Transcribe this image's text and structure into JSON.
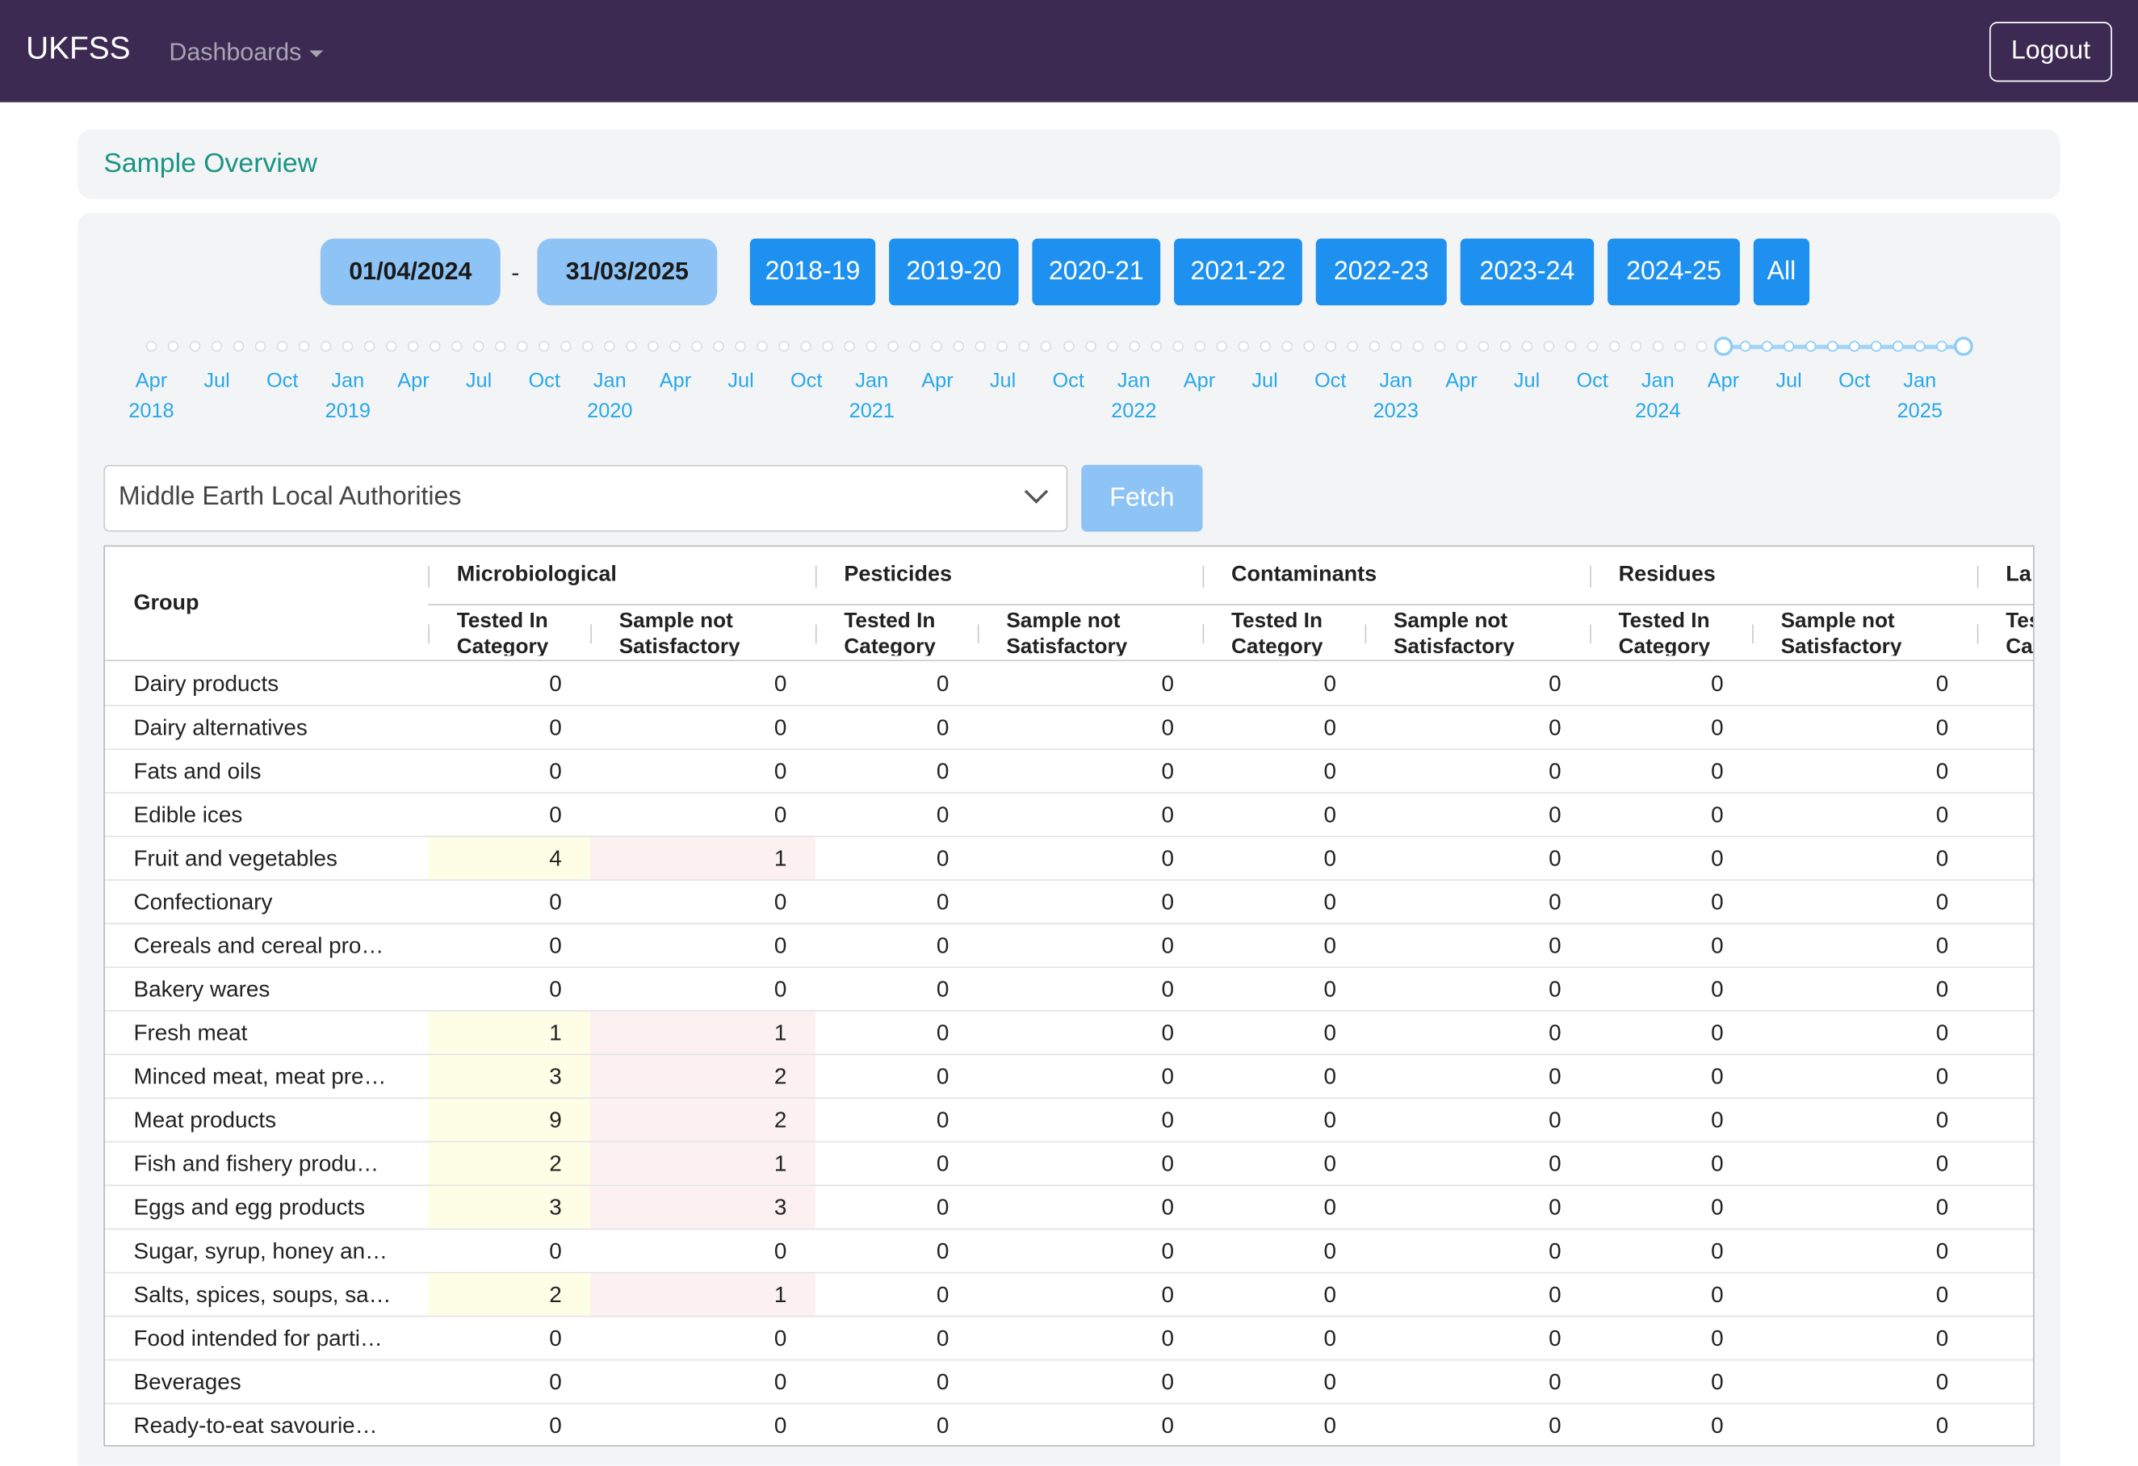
{
  "nav": {
    "brand": "UKFSS",
    "menu": "Dashboards",
    "logout": "Logout"
  },
  "title": "Sample Overview",
  "date_from": "01/04/2024",
  "date_to": "31/03/2025",
  "date_sep": "-",
  "periods": [
    "2018-19",
    "2019-20",
    "2020-21",
    "2021-22",
    "2022-23",
    "2023-24",
    "2024-25",
    "All"
  ],
  "timeline": [
    {
      "month": "Apr",
      "year": "2018"
    },
    {
      "month": "Jul"
    },
    {
      "month": "Oct"
    },
    {
      "month": "Jan",
      "year": "2019"
    },
    {
      "month": "Apr"
    },
    {
      "month": "Jul"
    },
    {
      "month": "Oct"
    },
    {
      "month": "Jan",
      "year": "2020"
    },
    {
      "month": "Apr"
    },
    {
      "month": "Jul"
    },
    {
      "month": "Oct"
    },
    {
      "month": "Jan",
      "year": "2021"
    },
    {
      "month": "Apr"
    },
    {
      "month": "Jul"
    },
    {
      "month": "Oct"
    },
    {
      "month": "Jan",
      "year": "2022"
    },
    {
      "month": "Apr"
    },
    {
      "month": "Jul"
    },
    {
      "month": "Oct"
    },
    {
      "month": "Jan",
      "year": "2023"
    },
    {
      "month": "Apr"
    },
    {
      "month": "Jul"
    },
    {
      "month": "Oct"
    },
    {
      "month": "Jan",
      "year": "2024"
    },
    {
      "month": "Apr"
    },
    {
      "month": "Jul"
    },
    {
      "month": "Oct"
    },
    {
      "month": "Jan",
      "year": "2025"
    }
  ],
  "select": "Middle Earth Local Authorities",
  "fetch": "Fetch",
  "table": {
    "group_header": "Group",
    "groups": [
      "Microbiological",
      "Pesticides",
      "Contaminants",
      "Residues",
      "La"
    ],
    "subcolumns": [
      "Tested In Category",
      "Sample not Satisfactory"
    ],
    "rows": [
      {
        "name": "Dairy products",
        "values": [
          0,
          0,
          0,
          0,
          0,
          0,
          0,
          0
        ]
      },
      {
        "name": "Dairy alternatives",
        "values": [
          0,
          0,
          0,
          0,
          0,
          0,
          0,
          0
        ]
      },
      {
        "name": "Fats and oils",
        "values": [
          0,
          0,
          0,
          0,
          0,
          0,
          0,
          0
        ]
      },
      {
        "name": "Edible ices",
        "values": [
          0,
          0,
          0,
          0,
          0,
          0,
          0,
          0
        ]
      },
      {
        "name": "Fruit and vegetables",
        "values": [
          4,
          1,
          0,
          0,
          0,
          0,
          0,
          0
        ]
      },
      {
        "name": "Confectionary",
        "values": [
          0,
          0,
          0,
          0,
          0,
          0,
          0,
          0
        ]
      },
      {
        "name": "Cereals and cereal pro…",
        "values": [
          0,
          0,
          0,
          0,
          0,
          0,
          0,
          0
        ]
      },
      {
        "name": "Bakery wares",
        "values": [
          0,
          0,
          0,
          0,
          0,
          0,
          0,
          0
        ]
      },
      {
        "name": "Fresh meat",
        "values": [
          1,
          1,
          0,
          0,
          0,
          0,
          0,
          0
        ]
      },
      {
        "name": "Minced meat, meat pre…",
        "values": [
          3,
          2,
          0,
          0,
          0,
          0,
          0,
          0
        ]
      },
      {
        "name": "Meat products",
        "values": [
          9,
          2,
          0,
          0,
          0,
          0,
          0,
          0
        ]
      },
      {
        "name": "Fish and fishery produ…",
        "values": [
          2,
          1,
          0,
          0,
          0,
          0,
          0,
          0
        ]
      },
      {
        "name": "Eggs and egg products",
        "values": [
          3,
          3,
          0,
          0,
          0,
          0,
          0,
          0
        ]
      },
      {
        "name": "Sugar, syrup, honey an…",
        "values": [
          0,
          0,
          0,
          0,
          0,
          0,
          0,
          0
        ]
      },
      {
        "name": "Salts, spices, soups, sa…",
        "values": [
          2,
          1,
          0,
          0,
          0,
          0,
          0,
          0
        ]
      },
      {
        "name": "Food intended for parti…",
        "values": [
          0,
          0,
          0,
          0,
          0,
          0,
          0,
          0
        ]
      },
      {
        "name": "Beverages",
        "values": [
          0,
          0,
          0,
          0,
          0,
          0,
          0,
          0
        ]
      },
      {
        "name": "Ready-to-eat savourie…",
        "values": [
          0,
          0,
          0,
          0,
          0,
          0,
          0,
          0
        ]
      }
    ]
  }
}
